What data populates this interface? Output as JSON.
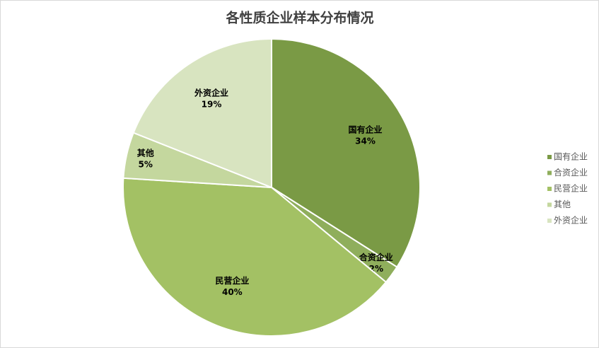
{
  "chart_data": {
    "type": "pie",
    "title": "各性质企业样本分布情况",
    "categories": [
      "国有企业",
      "合资企业",
      "民营企业",
      "其他",
      "外资企业"
    ],
    "values": [
      34,
      2,
      40,
      5,
      19
    ],
    "value_labels": [
      "34%",
      "2%",
      "40%",
      "5%",
      "19%"
    ],
    "colors": [
      "#7a9a45",
      "#8fae5c",
      "#a3c164",
      "#c4d79e",
      "#d8e4c0"
    ],
    "legend": "right"
  }
}
